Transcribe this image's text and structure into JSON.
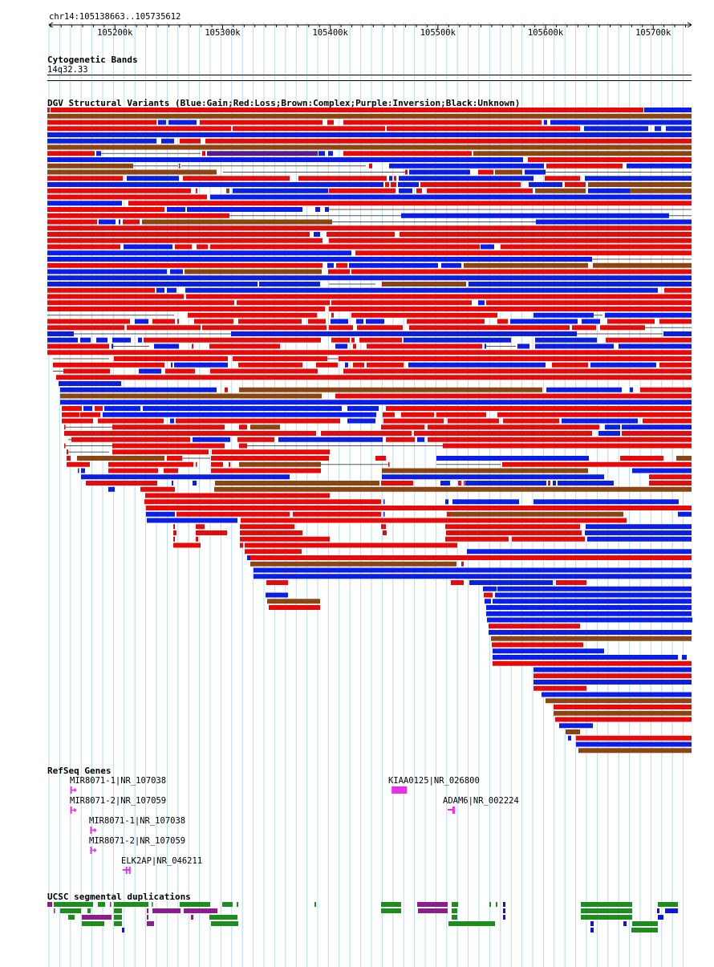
{
  "browser": {
    "region": "chr14:105138663..105735612",
    "range": [
      105138663,
      105735612
    ],
    "ticks": [
      {
        "value": 105200000,
        "label": "105200k"
      },
      {
        "value": 105300000,
        "label": "105300k"
      },
      {
        "value": 105400000,
        "label": "105400k"
      },
      {
        "value": 105500000,
        "label": "105500k"
      },
      {
        "value": 105600000,
        "label": "105600k"
      },
      {
        "value": 105700000,
        "label": "105700k"
      }
    ]
  },
  "tracks": {
    "cytoband": {
      "title": "Cytogenetic Bands",
      "band": "14q32.33"
    },
    "dgv": {
      "title": "DGV Structural Variants (Blue:Gain;Red:Loss;Brown:Complex;Purple:Inversion;Black:Unknown)",
      "colors": {
        "B": "#0a1ee6",
        "R": "#e60a0a",
        "N": "#8b4513",
        "P": "#551a8b"
      }
    },
    "refseq": {
      "title": "RefSeq Genes",
      "color": "#e632e6",
      "genes": [
        {
          "label": "MIR8071-1|NR_107038",
          "pos": 105158500
        },
        {
          "label": "MIR8071-2|NR_107059",
          "pos": 105158500
        },
        {
          "label": "MIR8071-1|NR_107038",
          "pos": 105177000
        },
        {
          "label": "MIR8071-2|NR_107059",
          "pos": 105177000
        },
        {
          "label": "ELK2AP|NR_046211",
          "pos": 105207000
        },
        {
          "label": "KIAA0125|NR_026800",
          "pos": 105457000
        },
        {
          "label": "ADAM6|NR_002224",
          "pos": 105509000
        }
      ]
    },
    "segdup": {
      "title": "UCSC segmental duplications"
    }
  }
}
